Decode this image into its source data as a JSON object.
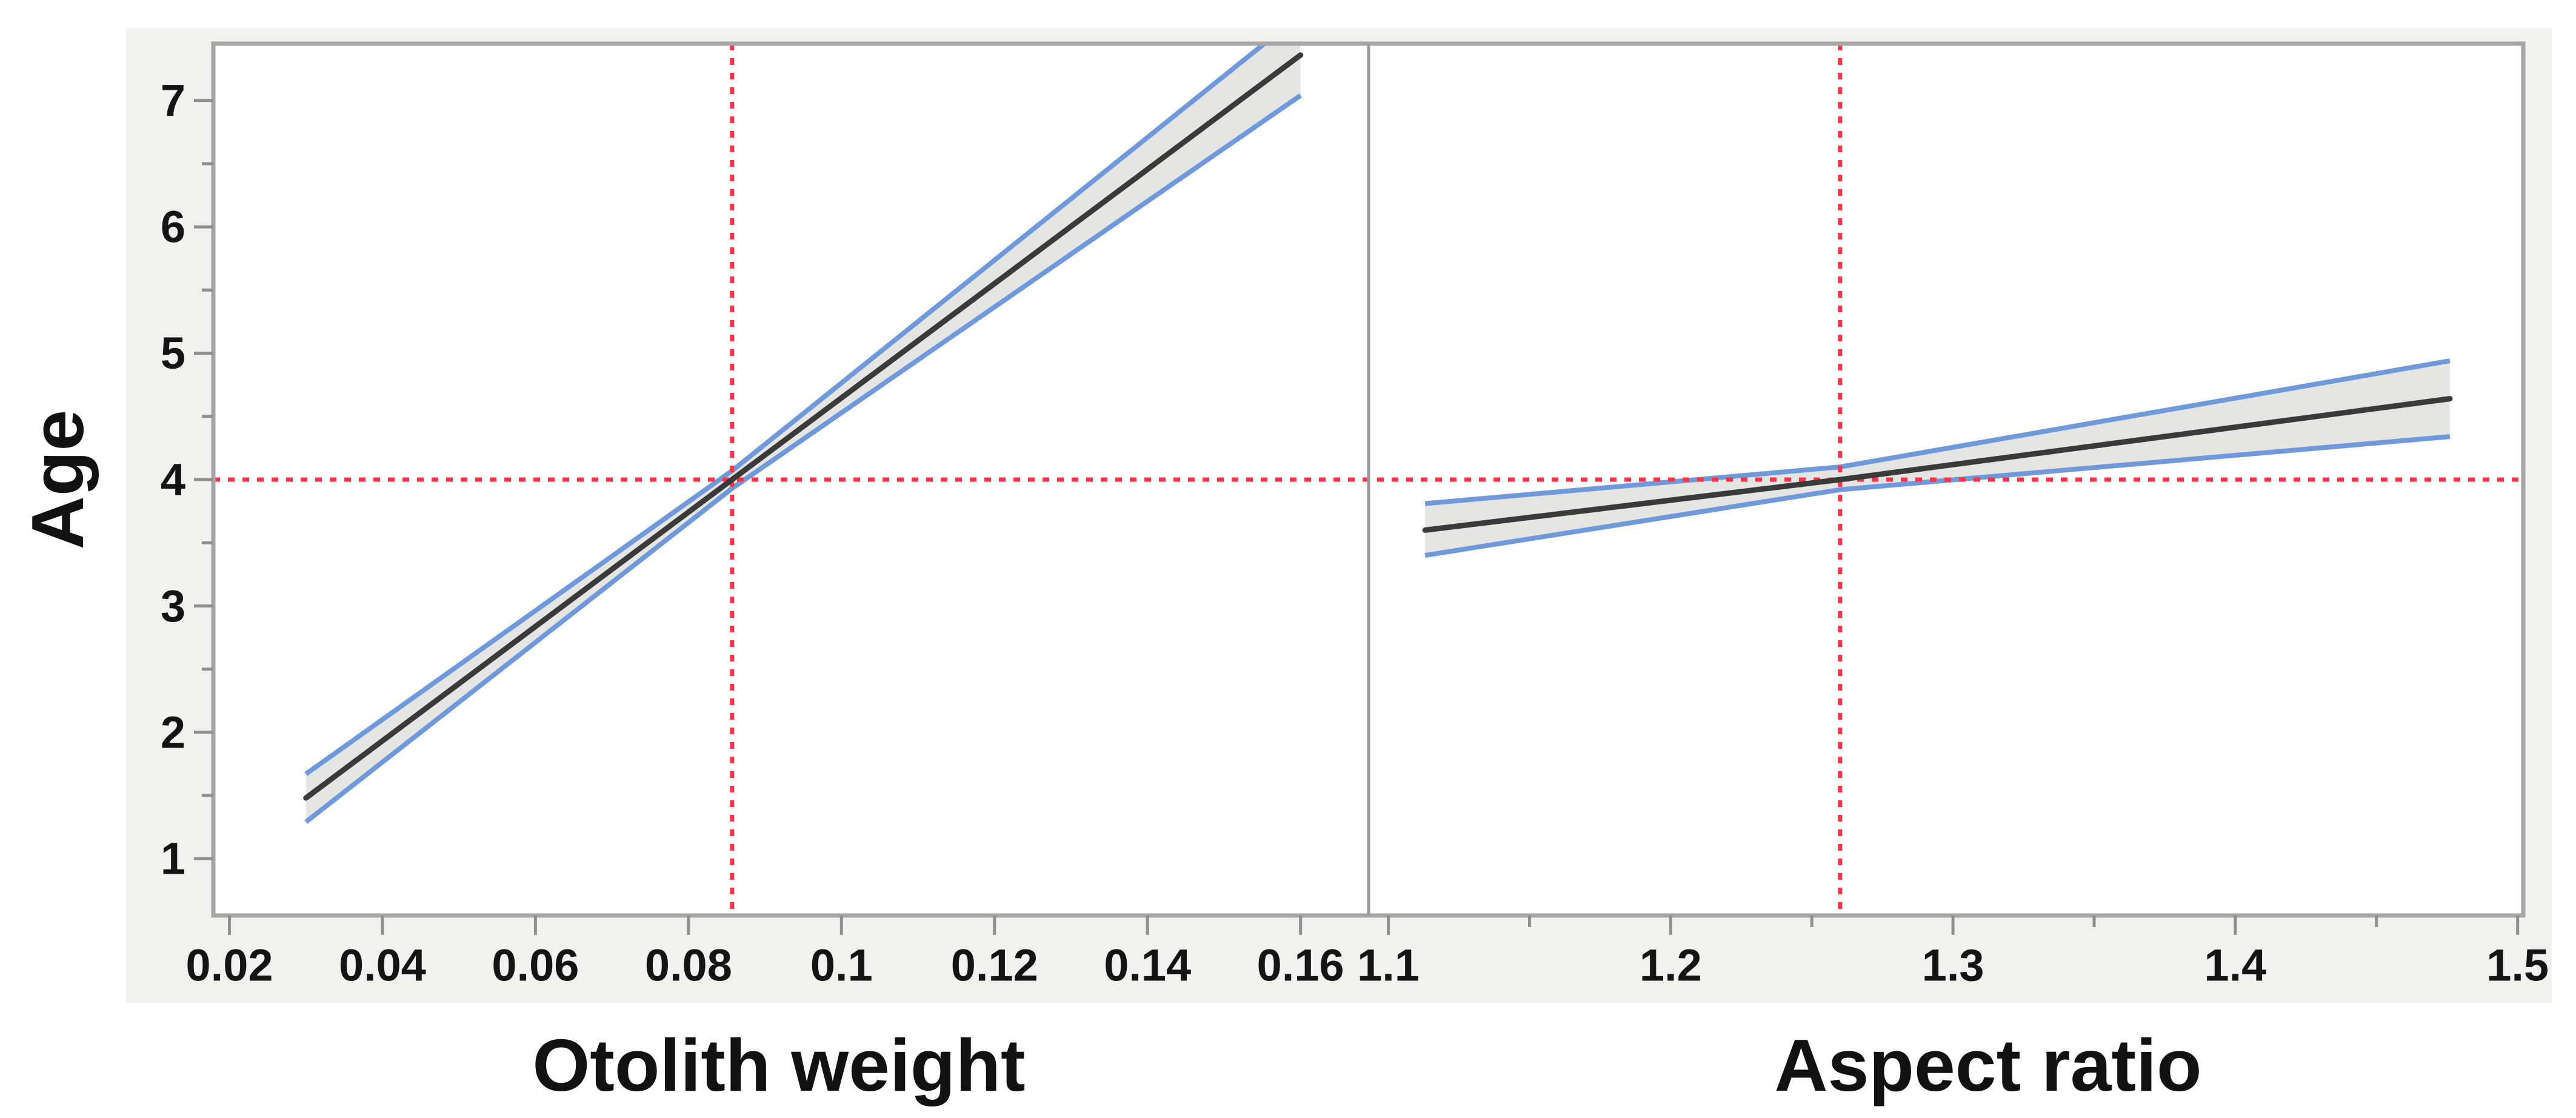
{
  "chart_data": {
    "type": "line",
    "title": "",
    "ylabel": "Age",
    "ylim": [
      0.55,
      7.45
    ],
    "yticks": [
      1,
      2,
      3,
      4,
      5,
      6,
      7
    ],
    "ytick_labels": [
      "1",
      "2",
      "3",
      "4",
      "5",
      "6",
      "7"
    ],
    "yminor": [
      1.5,
      2.5,
      3.5,
      4.5,
      5.5,
      6.5
    ],
    "grid": "off",
    "legend": "none",
    "crosshair_y": 4.0,
    "panels": [
      {
        "xlabel": "Otolith weight",
        "xlim": [
          0.0179,
          0.1689
        ],
        "xticks": [
          0.02,
          0.04,
          0.06,
          0.08,
          0.1,
          0.12,
          0.14,
          0.16
        ],
        "xtick_labels": [
          "0.02",
          "0.04",
          "0.06",
          "0.08",
          "0.1",
          "0.12",
          "0.14",
          "0.16"
        ],
        "xminor": [],
        "crosshair_x": 0.0857,
        "line": {
          "x": [
            0.03,
            0.0857,
            0.16
          ],
          "y": [
            1.48,
            4.0,
            7.36
          ]
        },
        "band_upper": {
          "x": [
            0.03,
            0.0857,
            0.16
          ],
          "y": [
            1.67,
            4.07,
            7.68
          ]
        },
        "band_lower": {
          "x": [
            0.03,
            0.0857,
            0.16
          ],
          "y": [
            1.29,
            3.93,
            7.04
          ]
        }
      },
      {
        "xlabel": "Aspect ratio",
        "xlim": [
          1.093,
          1.502
        ],
        "xticks": [
          1.1,
          1.2,
          1.3,
          1.4,
          1.5
        ],
        "xtick_labels": [
          "1.1",
          "1.2",
          "1.3",
          "1.4",
          "1.5"
        ],
        "xminor": [
          1.15,
          1.25,
          1.35,
          1.45
        ],
        "crosshair_x": 1.26,
        "line": {
          "x": [
            1.113,
            1.26,
            1.476
          ],
          "y": [
            3.6,
            4.0,
            4.64
          ]
        },
        "band_upper": {
          "x": [
            1.113,
            1.26,
            1.476
          ],
          "y": [
            3.81,
            4.1,
            4.94
          ]
        },
        "band_lower": {
          "x": [
            1.113,
            1.26,
            1.476
          ],
          "y": [
            3.4,
            3.92,
            4.34
          ]
        }
      }
    ],
    "colors": {
      "crosshair": "#f5364a",
      "fit_line": "#3a3a3a",
      "band_fill": "#e5e5e3",
      "band_edge": "#6f99da",
      "frame": "#a6a6a6",
      "divider": "#9a9a9a",
      "tick": "#8f8f8f",
      "label": "#141414",
      "canvas_bg": "#f1f1f0",
      "panel_bg": "#ffffff"
    }
  }
}
